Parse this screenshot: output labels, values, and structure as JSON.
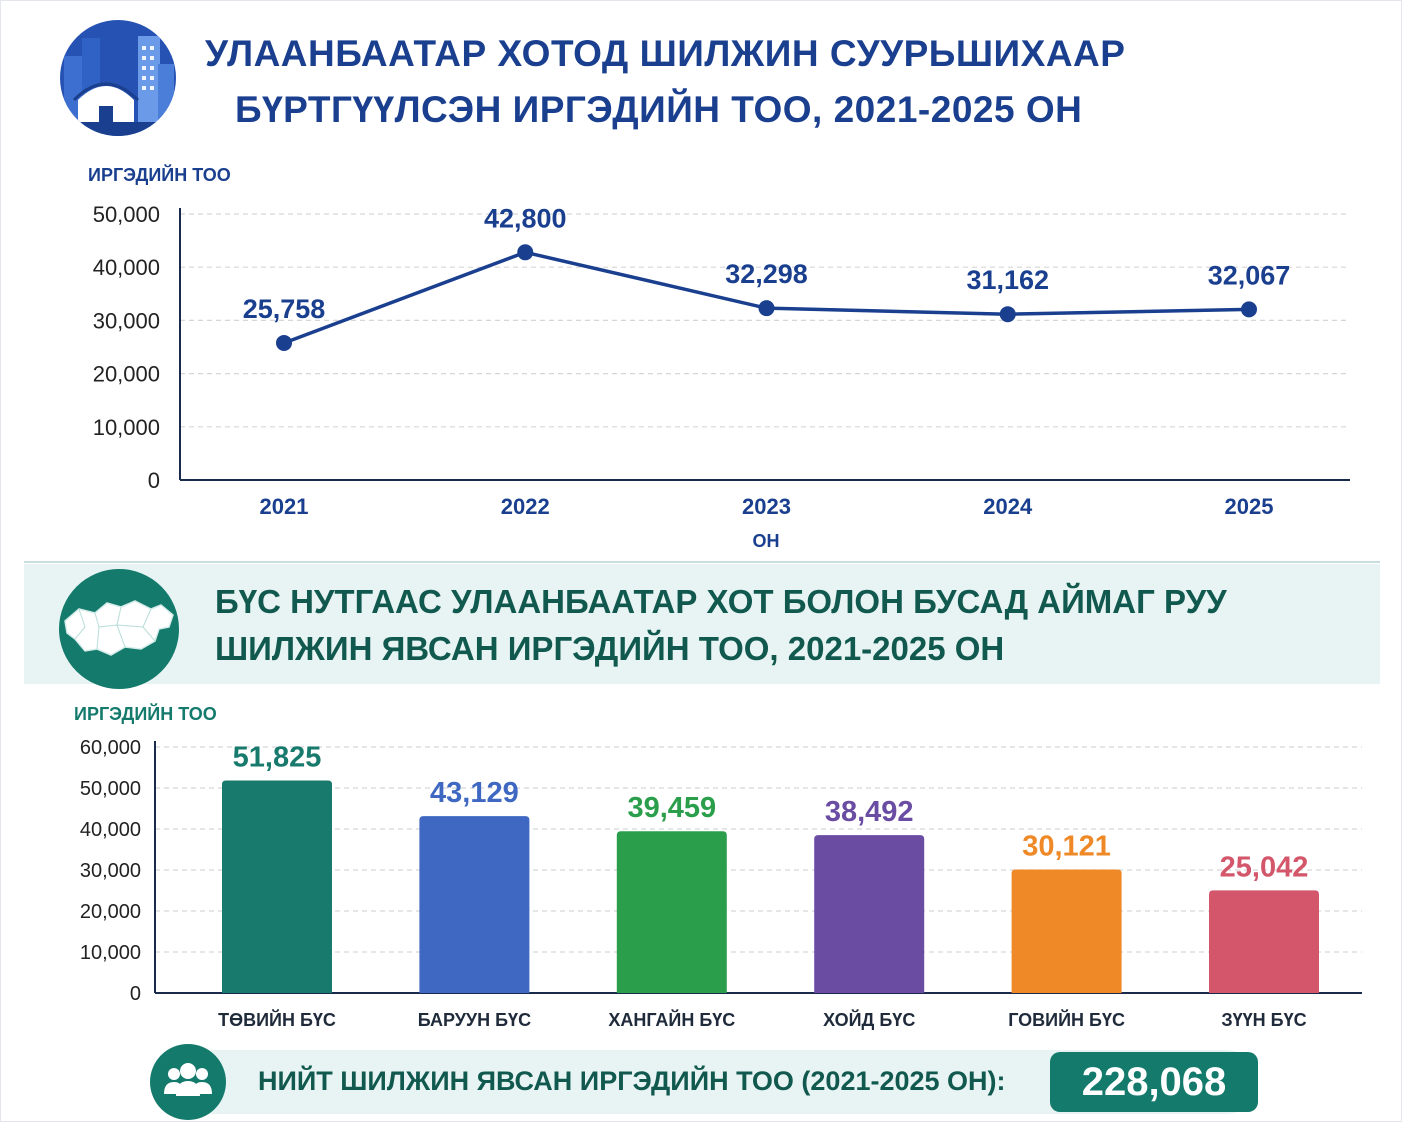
{
  "top": {
    "title_line1": "УЛААНБААТАР ХОТОД ШИЛЖИН СУУРЬШИХААР",
    "title_line2": "БҮРТГҮҮЛСЭН ИРГЭДИЙН ТОО, 2021-2025 ОН",
    "icon": "city-skyline-icon"
  },
  "bottom": {
    "title_line1": "БҮС НУТГААС УЛААНБААТАР ХОТ БОЛОН БУСАД АЙМАГ РУУ",
    "title_line2": "ШИЛЖИН ЯВСАН ИРГЭДИЙН ТОО, 2021-2025 ОН",
    "icon": "mongolia-map-icon"
  },
  "total": {
    "icon": "people-group-icon",
    "label": "НИЙТ ШИЛЖИН ЯВСАН ИРГЭДИЙН ТОО (2021-2025 ОН):",
    "value": "228,068"
  },
  "colors": {
    "navy": "#1a3f8f",
    "teal": "#137a6c",
    "grid": "#d4d4d4"
  },
  "chart_data": [
    {
      "type": "line",
      "title": "УЛААНБААТАР ХОТОД ШИЛЖИН СУУРЬШИХААР БҮРТГҮҮЛСЭН ИРГЭДИЙН ТОО, 2021-2025 ОН",
      "ylabel": "ИРГЭДИЙН ТОО",
      "xlabel": "ОН",
      "x": [
        "2021",
        "2022",
        "2023",
        "2024",
        "2025"
      ],
      "values": [
        25758,
        42800,
        32298,
        31162,
        32067
      ],
      "labels": [
        "25,758",
        "42,800",
        "32,298",
        "31,162",
        "32,067"
      ],
      "ylim": [
        0,
        50000
      ],
      "yticks": [
        0,
        10000,
        20000,
        30000,
        40000,
        50000
      ],
      "ytick_labels": [
        "0",
        "10,000",
        "20,000",
        "30,000",
        "40,000",
        "50,000"
      ],
      "grid": true,
      "color": "#1a3f8f"
    },
    {
      "type": "bar",
      "title": "БҮС НУТГААС УЛААНБААТАР ХОТ БОЛОН БУСАД АЙМАГ РУУ ШИЛЖИН ЯВСАН ИРГЭДИЙН ТОО, 2021-2025 ОН",
      "ylabel": "ИРГЭДИЙН ТОО",
      "categories": [
        "ТӨВИЙН БҮС",
        "БАРУУН БҮС",
        "ХАНГАЙН БҮС",
        "ХОЙД БҮС",
        "ГОВИЙН БҮС",
        "ЗҮҮН БҮС"
      ],
      "values": [
        51825,
        43129,
        39459,
        38492,
        30121,
        25042
      ],
      "labels": [
        "51,825",
        "43,129",
        "39,459",
        "38,492",
        "30,121",
        "25,042"
      ],
      "colors": [
        "#177a6c",
        "#3f68c2",
        "#2a9e4b",
        "#6a4ca3",
        "#ef8827",
        "#d3566a"
      ],
      "ylim": [
        0,
        60000
      ],
      "yticks": [
        0,
        10000,
        20000,
        30000,
        40000,
        50000,
        60000
      ],
      "ytick_labels": [
        "0",
        "10,000",
        "20,000",
        "30,000",
        "40,000",
        "50,000",
        "60,000"
      ],
      "grid": true
    }
  ]
}
